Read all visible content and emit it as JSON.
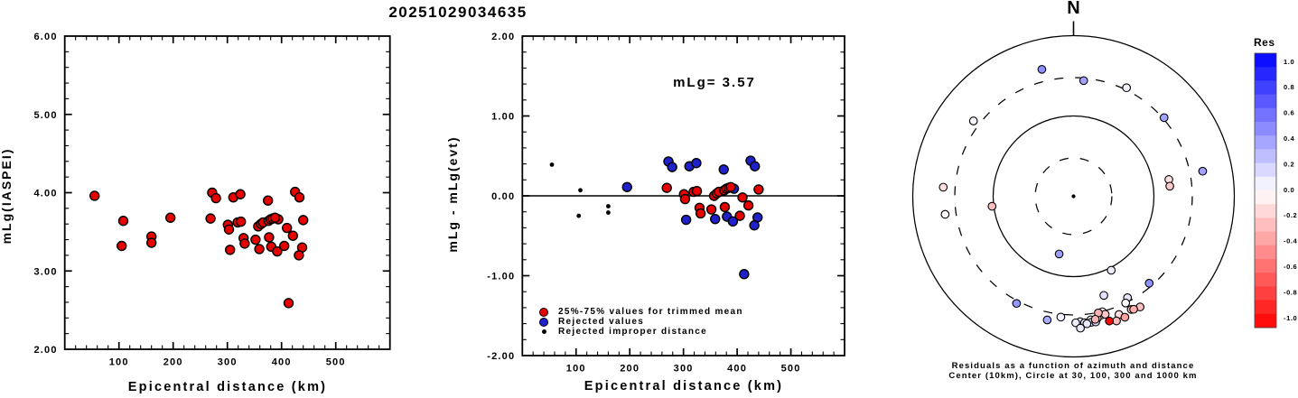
{
  "title": "20251029034635",
  "colors": {
    "accepted": "#e60000",
    "rejected": "#2121cc",
    "improper": "#000000",
    "frame": "#000000",
    "background": "#ffffff",
    "res_positive_end": "#0000ff",
    "res_negative_end": "#ff0000"
  },
  "chart_data": {
    "type": "scatter",
    "figure_title": "20251029034635",
    "mlg_event": 3.57,
    "stations": [
      {
        "az": 194,
        "dist_km": 55,
        "res": 0.39,
        "status": "improper"
      },
      {
        "az": 153,
        "dist_km": 108,
        "res": 0.07,
        "status": "improper"
      },
      {
        "az": 263,
        "dist_km": 105,
        "res": -0.25,
        "status": "improper"
      },
      {
        "az": 80,
        "dist_km": 160,
        "res": -0.13,
        "status": "improper"
      },
      {
        "az": 84,
        "dist_km": 160,
        "res": -0.21,
        "status": "improper"
      },
      {
        "az": 163,
        "dist_km": 195,
        "res": 0.11,
        "status": "rejected"
      },
      {
        "az": 139,
        "dist_km": 272,
        "res": 0.43,
        "status": "rejected"
      },
      {
        "az": 5,
        "dist_km": 279,
        "res": 0.36,
        "status": "rejected"
      },
      {
        "az": 49,
        "dist_km": 311,
        "res": 0.37,
        "status": "rejected"
      },
      {
        "az": 208,
        "dist_km": 324,
        "res": 0.41,
        "status": "rejected"
      },
      {
        "az": 168,
        "dist_km": 305,
        "res": -0.3,
        "status": "rejected"
      },
      {
        "az": 192,
        "dist_km": 375,
        "res": 0.33,
        "status": "rejected"
      },
      {
        "az": 170,
        "dist_km": 359,
        "res": -0.29,
        "status": "rejected"
      },
      {
        "az": 153,
        "dist_km": 381,
        "res": -0.26,
        "status": "rejected"
      },
      {
        "az": 152,
        "dist_km": 392,
        "res": -0.32,
        "status": "rejected"
      },
      {
        "az": 346,
        "dist_km": 425,
        "res": 0.44,
        "status": "rejected"
      },
      {
        "az": 79,
        "dist_km": 433,
        "res": 0.37,
        "status": "rejected"
      },
      {
        "az": 161,
        "dist_km": 438,
        "res": -0.27,
        "status": "rejected"
      },
      {
        "az": 157,
        "dist_km": 432,
        "res": -0.37,
        "status": "rejected"
      },
      {
        "az": 164,
        "dist_km": 413,
        "res": -0.98,
        "status": "rejected"
      },
      {
        "az": 174,
        "dist_km": 394,
        "res": 0.09,
        "status": "rejected"
      },
      {
        "az": 152,
        "dist_km": 269,
        "res": 0.1,
        "status": "accepted"
      },
      {
        "az": 154,
        "dist_km": 301,
        "res": 0.02,
        "status": "accepted"
      },
      {
        "az": 166,
        "dist_km": 303,
        "res": -0.04,
        "status": "accepted"
      },
      {
        "az": 26,
        "dist_km": 319,
        "res": 0.05,
        "status": "accepted"
      },
      {
        "az": 186,
        "dist_km": 325,
        "res": 0.06,
        "status": "accepted"
      },
      {
        "az": 167,
        "dist_km": 330,
        "res": -0.15,
        "status": "accepted"
      },
      {
        "az": 165,
        "dist_km": 332,
        "res": -0.22,
        "status": "accepted"
      },
      {
        "az": 169,
        "dist_km": 352,
        "res": -0.17,
        "status": "accepted"
      },
      {
        "az": 172,
        "dist_km": 357,
        "res": 0.0,
        "status": "accepted"
      },
      {
        "az": 307,
        "dist_km": 362,
        "res": 0.03,
        "status": "accepted"
      },
      {
        "az": 177,
        "dist_km": 366,
        "res": 0.05,
        "status": "accepted"
      },
      {
        "az": 179,
        "dist_km": 376,
        "res": 0.07,
        "status": "accepted"
      },
      {
        "az": 159,
        "dist_km": 377,
        "res": -0.14,
        "status": "accepted"
      },
      {
        "az": 175,
        "dist_km": 380,
        "res": 0.09,
        "status": "accepted"
      },
      {
        "az": 172,
        "dist_km": 384,
        "res": 0.1,
        "status": "accepted"
      },
      {
        "az": 170,
        "dist_km": 388,
        "res": 0.11,
        "status": "accepted"
      },
      {
        "az": 149,
        "dist_km": 405,
        "res": -0.25,
        "status": "accepted"
      },
      {
        "az": 262,
        "dist_km": 410,
        "res": -0.02,
        "status": "accepted"
      },
      {
        "az": 274,
        "dist_km": 421,
        "res": -0.12,
        "status": "accepted"
      },
      {
        "az": 177,
        "dist_km": 440,
        "res": 0.08,
        "status": "accepted"
      }
    ],
    "panels": [
      {
        "type": "scatter",
        "xlabel": "Epicentral distance (km)",
        "ylabel": "mLg(IASPEI)",
        "xlim": [
          0,
          600
        ],
        "ylim": [
          2,
          6
        ],
        "x_ticks": [
          100,
          200,
          300,
          400,
          500
        ],
        "x_tick_labels": [
          "100",
          "200",
          "300",
          "400",
          "500"
        ],
        "x_minor_step": 20,
        "y_ticks": [
          6,
          5,
          4,
          3,
          2
        ],
        "y_tick_labels": [
          "6.00",
          "5.00",
          "4.00",
          "3.00",
          "2.00"
        ],
        "y_minor_step": 0.2,
        "point_rule": "y = mlg_event + station.res, x = station.dist_km, all points drawn red"
      },
      {
        "type": "scatter",
        "xlabel": "Epicentral distance (km)",
        "ylabel": "mLg - mLg(evt)",
        "annotation": "mLg= 3.57",
        "zero_line": true,
        "xlim": [
          0,
          600
        ],
        "ylim": [
          -2,
          2
        ],
        "x_ticks": [
          100,
          200,
          300,
          400,
          500
        ],
        "x_tick_labels": [
          "100",
          "200",
          "300",
          "400",
          "500"
        ],
        "x_minor_step": 20,
        "y_ticks": [
          2,
          1,
          0,
          -1,
          -2
        ],
        "y_tick_labels": [
          "2.00",
          "1.00",
          "0.00",
          "-1.00",
          "-2.00"
        ],
        "y_minor_step": 0.2,
        "legend": [
          {
            "marker": "accepted",
            "label": "25%-75% values for trimmed mean"
          },
          {
            "marker": "rejected",
            "label": "Rejected values"
          },
          {
            "marker": "improper",
            "label": "Rejected improper distance"
          }
        ],
        "point_rule": "y = station.res, x = station.dist_km, color by status"
      },
      {
        "type": "polar-scatter",
        "north_label": "N",
        "center_km": 10,
        "rings_km": [
          30,
          100,
          300,
          1000
        ],
        "dashed_rings_km": [
          30,
          300
        ],
        "caption_line1": "Residuals as a function of azimuth and distance",
        "caption_line2": "Center (10km), Circle at 30, 100, 300 and 1000 km",
        "radial_scale": "logarithmic in distance/10",
        "point_rule": "angle = station.az clockwise from North, radius = log10(dist/10), fill = blue-white-red by res",
        "colorbar": {
          "title": "Res",
          "vmin": -1.0,
          "vmax": 1.0,
          "segments": 20,
          "tick_labels": [
            "1.0",
            "0.8",
            "0.6",
            "0.4",
            "0.2",
            "0.0",
            "-0.2",
            "-0.4",
            "-0.6",
            "-0.8",
            "-1.0"
          ]
        }
      }
    ]
  }
}
